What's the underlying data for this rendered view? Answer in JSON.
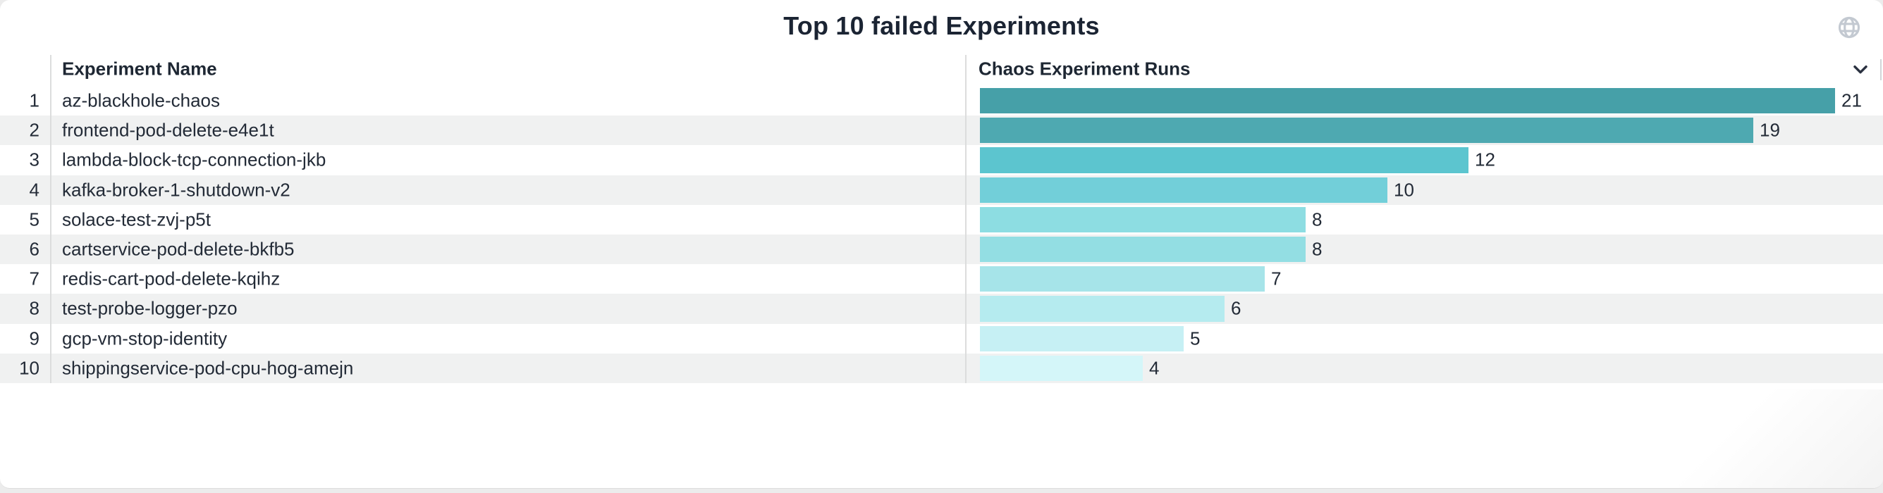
{
  "panel": {
    "title": "Top 10 failed Experiments",
    "icons": {
      "top_right": "globe-icon",
      "header_menu": "chevron-down-icon"
    }
  },
  "table": {
    "columns": [
      {
        "label": "Experiment Name"
      },
      {
        "label": "Chaos Experiment Runs"
      }
    ],
    "rows": [
      {
        "rank": "1",
        "name": "az-blackhole-chaos",
        "runs": 21,
        "bar_color": "#46A0A8"
      },
      {
        "rank": "2",
        "name": "frontend-pod-delete-e4e1t",
        "runs": 19,
        "bar_color": "#4EA9B1"
      },
      {
        "rank": "3",
        "name": "lambda-block-tcp-connection-jkb",
        "runs": 12,
        "bar_color": "#5CC5CF"
      },
      {
        "rank": "4",
        "name": "kafka-broker-1-shutdown-v2",
        "runs": 10,
        "bar_color": "#72CFD9"
      },
      {
        "rank": "5",
        "name": "solace-test-zvj-p5t",
        "runs": 8,
        "bar_color": "#8DDDE2"
      },
      {
        "rank": "6",
        "name": "cartservice-pod-delete-bkfb5",
        "runs": 8,
        "bar_color": "#93DEE3"
      },
      {
        "rank": "7",
        "name": "redis-cart-pod-delete-kqihz",
        "runs": 7,
        "bar_color": "#A6E4E9"
      },
      {
        "rank": "8",
        "name": "test-probe-logger-pzo",
        "runs": 6,
        "bar_color": "#B5EBEF"
      },
      {
        "rank": "9",
        "name": "gcp-vm-stop-identity",
        "runs": 5,
        "bar_color": "#C6F0F4"
      },
      {
        "rank": "10",
        "name": "shippingservice-pod-cpu-hog-amejn",
        "runs": 4,
        "bar_color": "#D4F6F9"
      }
    ],
    "stripe_color": "#f0f1f1"
  },
  "chart_data": {
    "type": "bar",
    "orientation": "horizontal",
    "title": "Top 10 failed Experiments",
    "series_label": "Chaos Experiment Runs",
    "categories": [
      "az-blackhole-chaos",
      "frontend-pod-delete-e4e1t",
      "lambda-block-tcp-connection-jkb",
      "kafka-broker-1-shutdown-v2",
      "solace-test-zvj-p5t",
      "cartservice-pod-delete-bkfb5",
      "redis-cart-pod-delete-kqihz",
      "test-probe-logger-pzo",
      "gcp-vm-stop-identity",
      "shippingservice-pod-cpu-hog-amejn"
    ],
    "values": [
      21,
      19,
      12,
      10,
      8,
      8,
      7,
      6,
      5,
      4
    ],
    "xlim": [
      0,
      21
    ],
    "grid": false,
    "legend": false,
    "bar_colors": [
      "#46A0A8",
      "#4EA9B1",
      "#5CC5CF",
      "#72CFD9",
      "#8DDDE2",
      "#93DEE3",
      "#A6E4E9",
      "#B5EBEF",
      "#C6F0F4",
      "#D4F6F9"
    ],
    "value_labels_shown": true
  }
}
